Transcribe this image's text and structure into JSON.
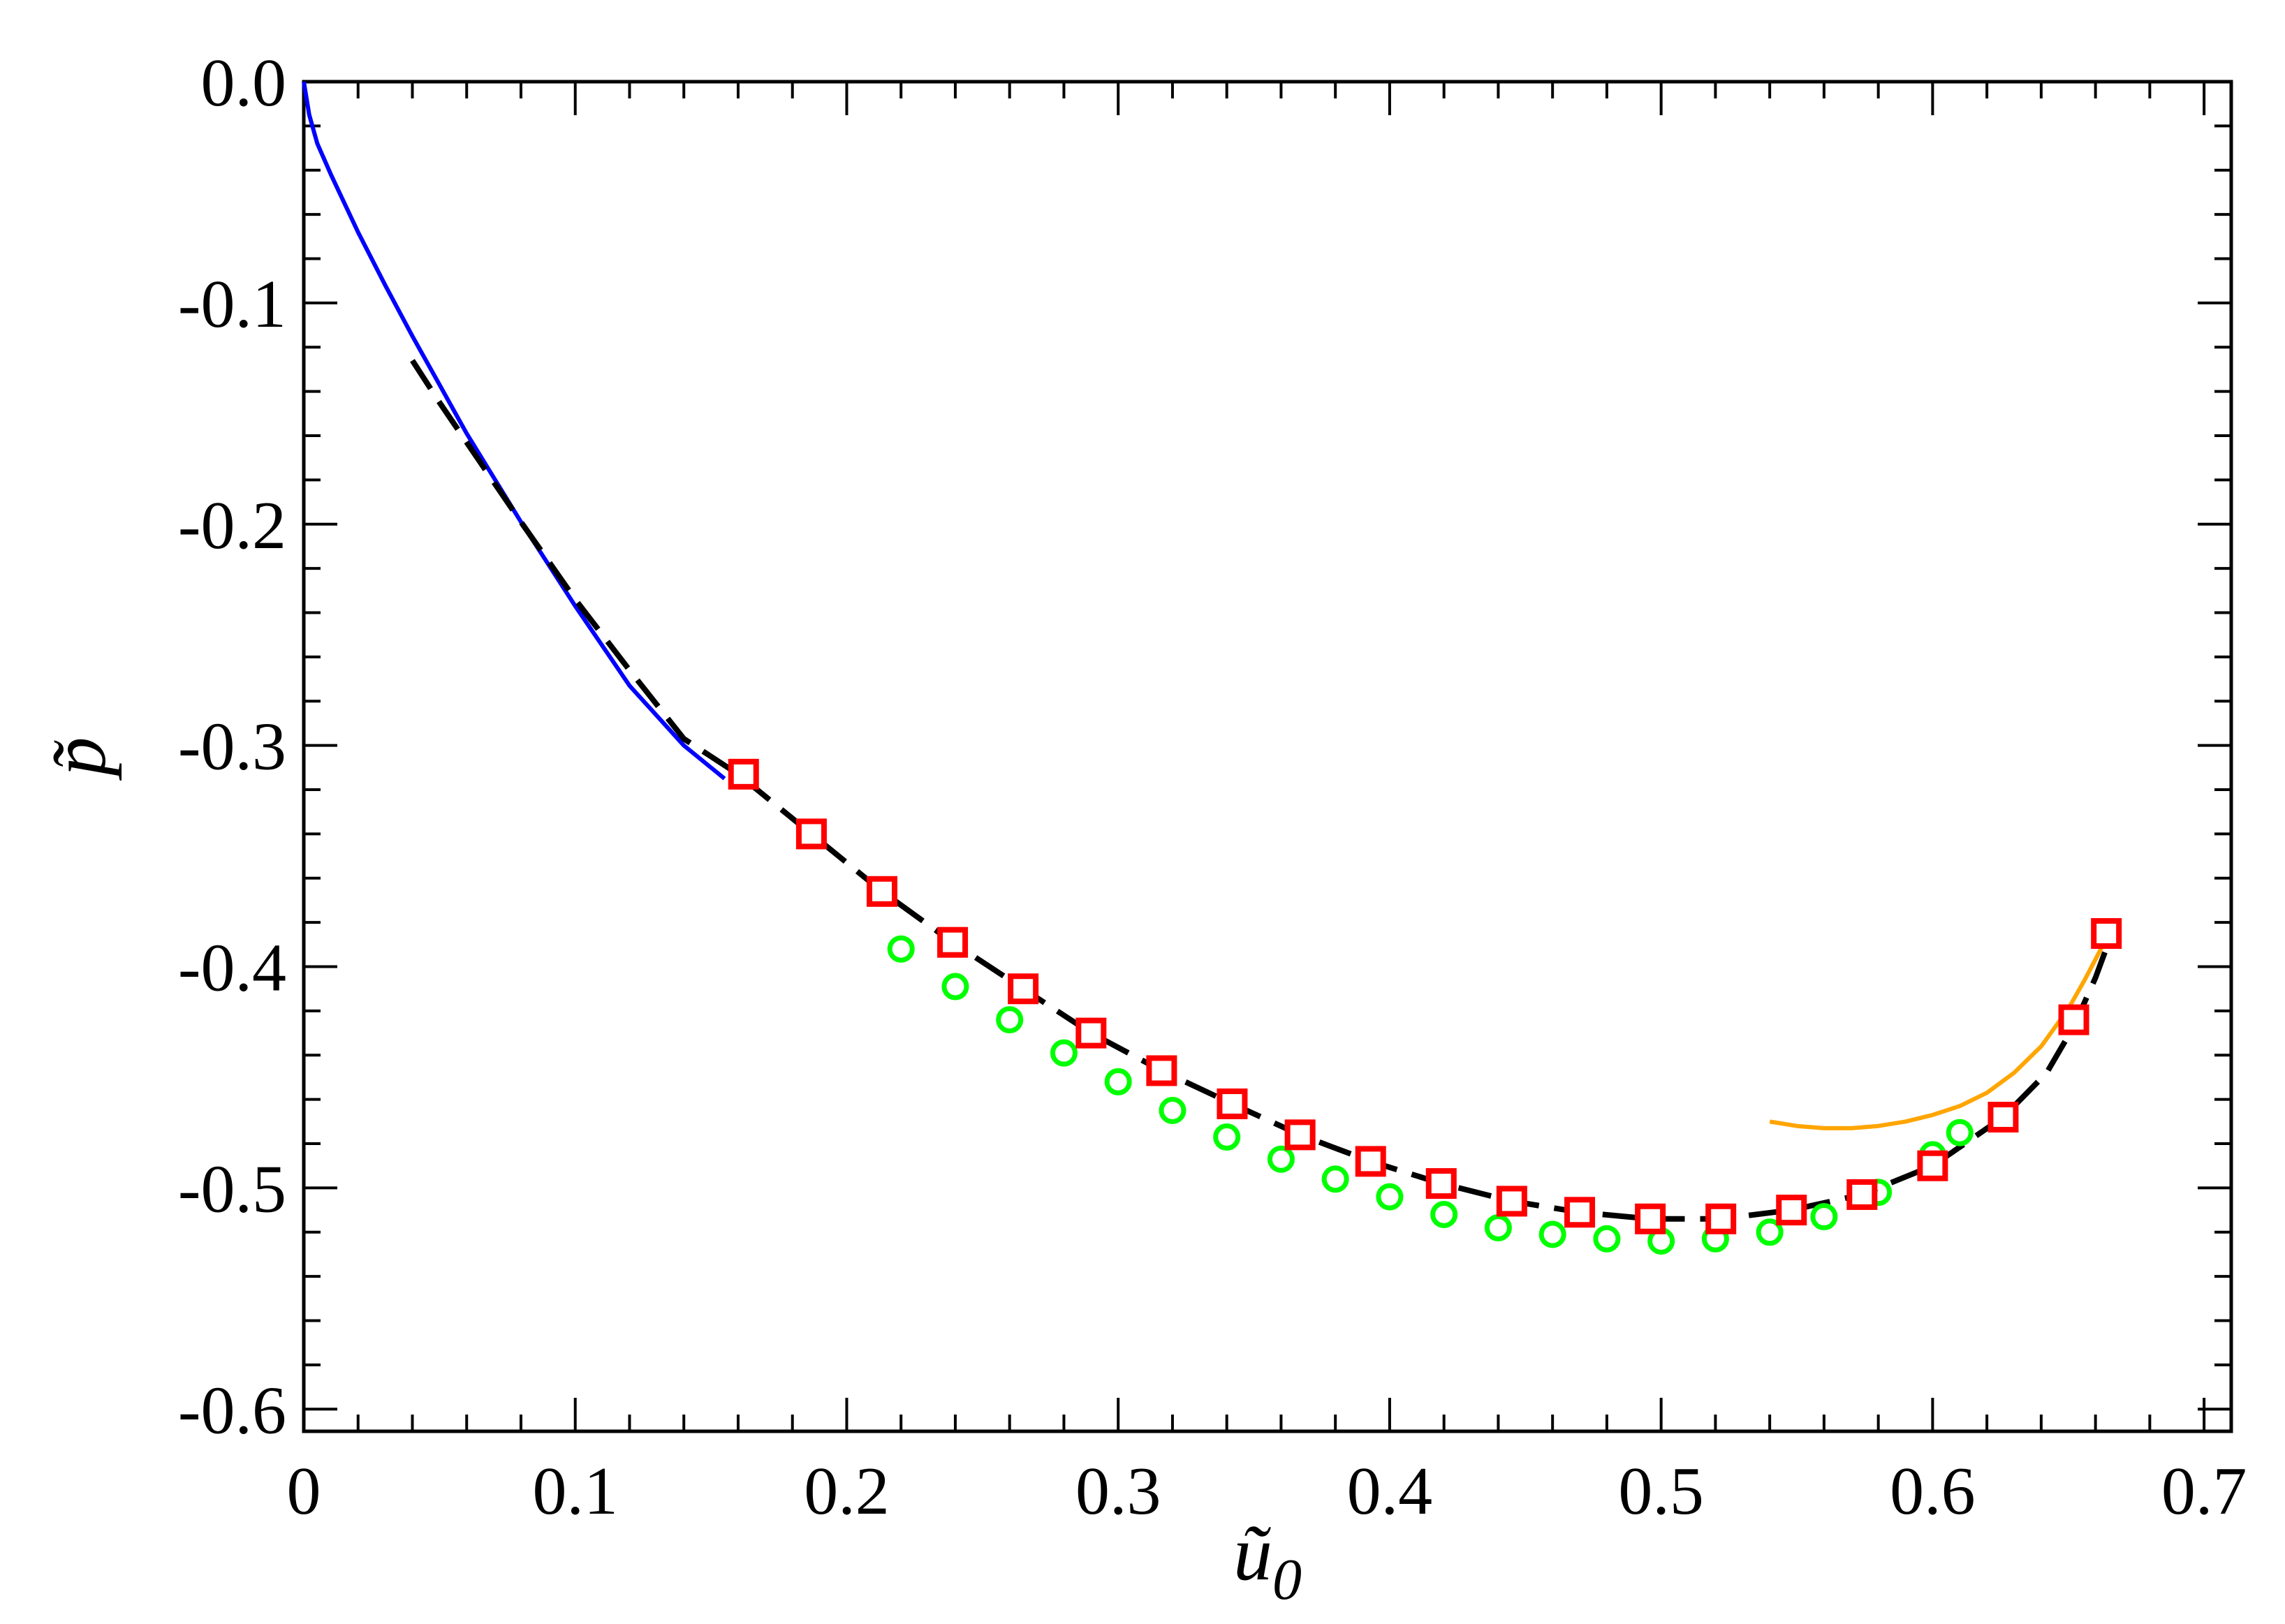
{
  "chart_data": {
    "type": "scatter",
    "xlabel": "ũ",
    "xlabel_subscript": "0",
    "ylabel": "p̃",
    "xlim": [
      0,
      0.71
    ],
    "ylim": [
      -0.61,
      0.0
    ],
    "xticks": [
      0,
      0.1,
      0.2,
      0.3,
      0.4,
      0.5,
      0.6,
      0.7
    ],
    "xtick_labels": [
      "0",
      "0.1",
      "0.2",
      "0.3",
      "0.4",
      "0.5",
      "0.6",
      "0.7"
    ],
    "yticks": [
      0.0,
      -0.1,
      -0.2,
      -0.3,
      -0.4,
      -0.5,
      -0.6
    ],
    "ytick_labels": [
      "0.0",
      "-0.1",
      "-0.2",
      "-0.3",
      "-0.4",
      "-0.5",
      "-0.6"
    ],
    "grid": false,
    "legend": "none",
    "series": [
      {
        "style": "line",
        "color": "#0000ff",
        "dash": "solid",
        "x": [
          0.0,
          0.002,
          0.005,
          0.01,
          0.02,
          0.03,
          0.04,
          0.05,
          0.06,
          0.08,
          0.1,
          0.12,
          0.14,
          0.155
        ],
        "y": [
          0.0,
          -0.015,
          -0.028,
          -0.042,
          -0.068,
          -0.092,
          -0.115,
          -0.137,
          -0.159,
          -0.199,
          -0.237,
          -0.273,
          -0.3,
          -0.315
        ]
      },
      {
        "style": "line",
        "color": "#000000",
        "dash": "dashed",
        "x": [
          0.04,
          0.05,
          0.06,
          0.08,
          0.1,
          0.12,
          0.14,
          0.16,
          0.187,
          0.213,
          0.239,
          0.265,
          0.29,
          0.316,
          0.342,
          0.367,
          0.393,
          0.419,
          0.445,
          0.47,
          0.496,
          0.522,
          0.548,
          0.574,
          0.6,
          0.626,
          0.642,
          0.652,
          0.66,
          0.666
        ],
        "y": [
          -0.126,
          -0.145,
          -0.163,
          -0.199,
          -0.234,
          -0.266,
          -0.297,
          -0.313,
          -0.34,
          -0.366,
          -0.389,
          -0.41,
          -0.43,
          -0.447,
          -0.462,
          -0.476,
          -0.488,
          -0.498,
          -0.506,
          -0.511,
          -0.514,
          -0.514,
          -0.51,
          -0.503,
          -0.49,
          -0.468,
          -0.448,
          -0.427,
          -0.405,
          -0.385
        ]
      },
      {
        "style": "line",
        "color": "#ffa500",
        "dash": "solid",
        "x": [
          0.54,
          0.55,
          0.56,
          0.57,
          0.58,
          0.59,
          0.6,
          0.61,
          0.62,
          0.63,
          0.64,
          0.65,
          0.656,
          0.662,
          0.666
        ],
        "y": [
          -0.47,
          -0.472,
          -0.473,
          -0.473,
          -0.472,
          -0.47,
          -0.467,
          -0.463,
          -0.457,
          -0.448,
          -0.436,
          -0.419,
          -0.406,
          -0.392,
          -0.38
        ]
      },
      {
        "style": "marker",
        "marker": "circle",
        "color": "#00ff00",
        "x": [
          0.22,
          0.24,
          0.26,
          0.28,
          0.3,
          0.32,
          0.34,
          0.36,
          0.38,
          0.4,
          0.42,
          0.44,
          0.46,
          0.48,
          0.5,
          0.52,
          0.54,
          0.56,
          0.58,
          0.6,
          0.61
        ],
        "y": [
          -0.392,
          -0.409,
          -0.424,
          -0.439,
          -0.452,
          -0.465,
          -0.477,
          -0.487,
          -0.496,
          -0.504,
          -0.512,
          -0.518,
          -0.521,
          -0.523,
          -0.524,
          -0.523,
          -0.52,
          -0.513,
          -0.502,
          -0.485,
          -0.475
        ]
      },
      {
        "style": "marker",
        "marker": "square",
        "color": "#ff0000",
        "x": [
          0.162,
          0.187,
          0.213,
          0.239,
          0.265,
          0.29,
          0.316,
          0.342,
          0.367,
          0.393,
          0.419,
          0.445,
          0.47,
          0.496,
          0.522,
          0.548,
          0.574,
          0.6,
          0.626,
          0.652,
          0.664
        ],
        "y": [
          -0.313,
          -0.34,
          -0.366,
          -0.389,
          -0.41,
          -0.43,
          -0.447,
          -0.462,
          -0.476,
          -0.488,
          -0.498,
          -0.506,
          -0.511,
          -0.514,
          -0.514,
          -0.51,
          -0.503,
          -0.49,
          -0.468,
          -0.424,
          -0.385
        ]
      }
    ]
  }
}
